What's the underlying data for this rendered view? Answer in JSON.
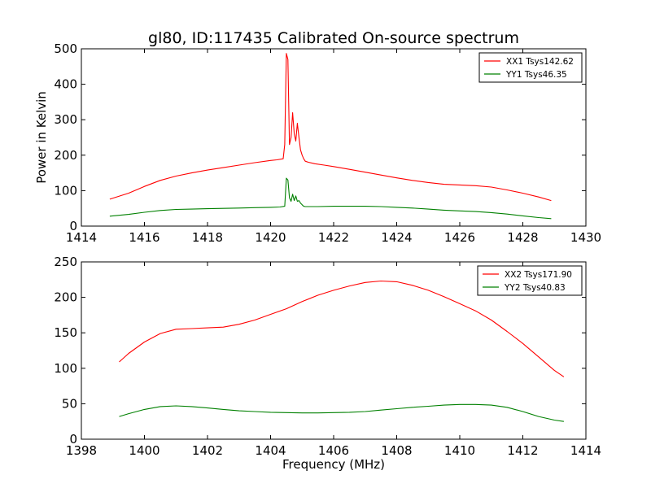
{
  "figure": {
    "title": "gl80, ID:117435 Calibrated On-source spectrum"
  },
  "chart_data": [
    {
      "type": "line",
      "title": "gl80, ID:117435 Calibrated On-source spectrum",
      "xlabel": "",
      "ylabel": "Power in Kelvin",
      "xlim": [
        1414,
        1430
      ],
      "ylim": [
        0,
        500
      ],
      "xticks": [
        "1414",
        "1416",
        "1418",
        "1420",
        "1422",
        "1424",
        "1426",
        "1428",
        "1430"
      ],
      "yticks": [
        "0",
        "100",
        "200",
        "300",
        "400",
        "500"
      ],
      "legend": "top-right",
      "grid": false,
      "series": [
        {
          "name": "XX1 Tsys142.62",
          "color": "#ff0000",
          "x": [
            1414.9,
            1415.5,
            1416.0,
            1416.5,
            1417.0,
            1417.5,
            1418.0,
            1418.5,
            1419.0,
            1419.5,
            1420.0,
            1420.2,
            1420.4,
            1420.45,
            1420.5,
            1420.55,
            1420.6,
            1420.65,
            1420.7,
            1420.75,
            1420.8,
            1420.85,
            1420.9,
            1420.95,
            1421.0,
            1421.05,
            1421.1,
            1421.2,
            1421.4,
            1421.7,
            1422.0,
            1422.5,
            1423.0,
            1423.5,
            1424.0,
            1424.5,
            1425.0,
            1425.5,
            1426.0,
            1426.5,
            1427.0,
            1427.5,
            1428.0,
            1428.5,
            1428.9
          ],
          "y": [
            76,
            93,
            112,
            129,
            141,
            150,
            158,
            165,
            172,
            179,
            185,
            187,
            190,
            230,
            487,
            470,
            230,
            250,
            320,
            260,
            240,
            290,
            250,
            215,
            200,
            190,
            183,
            180,
            176,
            172,
            168,
            160,
            152,
            144,
            136,
            129,
            123,
            118,
            116,
            114,
            110,
            102,
            93,
            82,
            72
          ]
        },
        {
          "name": "YY1 Tsys46.35",
          "color": "#008000",
          "x": [
            1414.9,
            1415.5,
            1416.0,
            1416.5,
            1417.0,
            1417.5,
            1418.0,
            1418.5,
            1419.0,
            1419.5,
            1420.0,
            1420.3,
            1420.45,
            1420.5,
            1420.55,
            1420.6,
            1420.65,
            1420.7,
            1420.75,
            1420.8,
            1420.85,
            1420.9,
            1420.95,
            1421.0,
            1421.05,
            1421.1,
            1421.2,
            1421.5,
            1422.0,
            1422.5,
            1423.0,
            1423.5,
            1424.0,
            1424.5,
            1425.0,
            1425.5,
            1426.0,
            1426.5,
            1427.0,
            1427.5,
            1428.0,
            1428.5,
            1428.9
          ],
          "y": [
            28,
            33,
            39,
            44,
            47,
            48,
            49,
            50,
            51,
            52,
            53,
            54,
            56,
            135,
            130,
            80,
            70,
            90,
            72,
            85,
            70,
            72,
            65,
            60,
            56,
            55,
            55,
            55,
            56,
            56,
            56,
            55,
            53,
            51,
            48,
            45,
            43,
            41,
            38,
            34,
            29,
            24,
            21
          ]
        }
      ]
    },
    {
      "type": "line",
      "title": "",
      "xlabel": "Frequency (MHz)",
      "ylabel": "",
      "xlim": [
        1398,
        1414
      ],
      "ylim": [
        0,
        250
      ],
      "xticks": [
        "1398",
        "1400",
        "1402",
        "1404",
        "1406",
        "1408",
        "1410",
        "1412",
        "1414"
      ],
      "yticks": [
        "0",
        "50",
        "100",
        "150",
        "200",
        "250"
      ],
      "legend": "top-right",
      "grid": false,
      "series": [
        {
          "name": "XX2 Tsys171.90",
          "color": "#ff0000",
          "x": [
            1399.2,
            1399.5,
            1400.0,
            1400.5,
            1401.0,
            1401.5,
            1402.0,
            1402.5,
            1403.0,
            1403.5,
            1404.0,
            1404.5,
            1405.0,
            1405.5,
            1406.0,
            1406.5,
            1407.0,
            1407.5,
            1408.0,
            1408.5,
            1409.0,
            1409.5,
            1410.0,
            1410.5,
            1411.0,
            1411.5,
            1412.0,
            1412.5,
            1413.0,
            1413.3
          ],
          "y": [
            109,
            121,
            137,
            149,
            155,
            156,
            157,
            158,
            162,
            168,
            176,
            184,
            194,
            203,
            210,
            216,
            221,
            223,
            222,
            217,
            210,
            201,
            191,
            181,
            168,
            152,
            135,
            116,
            97,
            88
          ]
        },
        {
          "name": "YY2 Tsys40.83",
          "color": "#008000",
          "x": [
            1399.2,
            1399.5,
            1400.0,
            1400.5,
            1401.0,
            1401.5,
            1402.0,
            1402.5,
            1403.0,
            1403.5,
            1404.0,
            1404.5,
            1405.0,
            1405.5,
            1406.0,
            1406.5,
            1407.0,
            1407.5,
            1408.0,
            1408.5,
            1409.0,
            1409.5,
            1410.0,
            1410.5,
            1411.0,
            1411.5,
            1412.0,
            1412.5,
            1413.0,
            1413.3
          ],
          "y": [
            32,
            36,
            42,
            46,
            47,
            46,
            44,
            42,
            40,
            39,
            38,
            37.5,
            37,
            37,
            37.5,
            38,
            39,
            41,
            43,
            45,
            46.5,
            48,
            49,
            49,
            48,
            45,
            39,
            32,
            27,
            25
          ]
        }
      ]
    }
  ]
}
